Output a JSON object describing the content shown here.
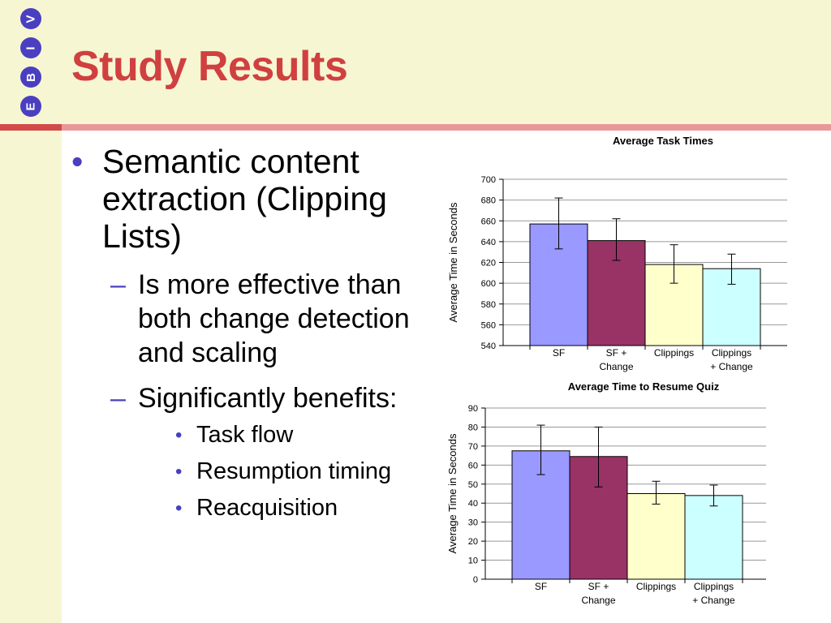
{
  "slide": {
    "title": "Study Results",
    "logo_letters": [
      "V",
      "I",
      "B",
      "E"
    ],
    "colors": {
      "header_background": "#f6f6d2",
      "title": "#d04040",
      "rule": "#e89898",
      "bullet": "#4a3fc0"
    }
  },
  "content": {
    "bullet": "Semantic content extraction (Clipping Lists)",
    "sub_bullets": [
      "Is more effective than both change detection and scaling",
      "Significantly benefits:"
    ],
    "benefits": [
      "Task flow",
      "Resumption timing",
      "Reacquisition"
    ]
  },
  "chart_data": [
    {
      "type": "bar",
      "title": "Average Task Times",
      "xlabel": "",
      "ylabel": "Average Time in Seconds",
      "categories": [
        [
          "SF"
        ],
        [
          "SF +",
          "Change"
        ],
        [
          "Clippings"
        ],
        [
          "Clippings",
          "+ Change"
        ]
      ],
      "values": [
        657,
        641,
        618,
        614
      ],
      "error_low": [
        633,
        622,
        600,
        599
      ],
      "error_high": [
        682,
        662,
        637,
        628
      ],
      "colors": [
        "#9999ff",
        "#993366",
        "#ffffcc",
        "#ccffff"
      ],
      "ylim": [
        540,
        700
      ],
      "yticks": [
        540,
        560,
        580,
        600,
        620,
        640,
        660,
        680,
        700
      ],
      "grid": true
    },
    {
      "type": "bar",
      "title": "Average Time to Resume Quiz",
      "xlabel": "",
      "ylabel": "Average Time in Seconds",
      "categories": [
        [
          "SF"
        ],
        [
          "SF +",
          "Change"
        ],
        [
          "Clippings"
        ],
        [
          "Clippings",
          "+ Change"
        ]
      ],
      "values": [
        67.5,
        64.5,
        45,
        44
      ],
      "error_low": [
        55,
        48.5,
        39.5,
        38.5
      ],
      "error_high": [
        81,
        80,
        51.5,
        49.5
      ],
      "colors": [
        "#9999ff",
        "#993366",
        "#ffffcc",
        "#ccffff"
      ],
      "ylim": [
        0,
        90
      ],
      "yticks": [
        0,
        10,
        20,
        30,
        40,
        50,
        60,
        70,
        80,
        90
      ],
      "grid": true
    }
  ]
}
